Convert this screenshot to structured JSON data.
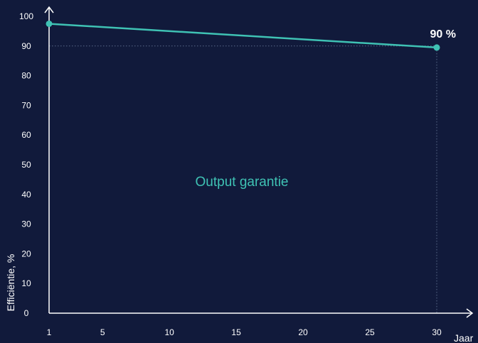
{
  "chart_data": {
    "type": "line",
    "x_ticks": [
      1,
      5,
      10,
      15,
      20,
      25,
      30
    ],
    "y_ticks": [
      0,
      10,
      20,
      30,
      40,
      50,
      60,
      70,
      80,
      90,
      100
    ],
    "xlim": [
      1,
      30
    ],
    "ylim": [
      0,
      100
    ],
    "xlabel": "Jaar",
    "ylabel": "Efficiëntie, %",
    "series": [
      {
        "x": [
          1,
          30
        ],
        "values": [
          97.5,
          89.5
        ]
      }
    ],
    "annotation": "90 %",
    "annotation_value": 90,
    "center_label": "Output garantie",
    "grid": false,
    "colors": {
      "background": "#111a3b",
      "line": "#3fc2b4",
      "axis": "#ffffff",
      "guide": "#5a6a8a",
      "label": "#3fc2b4"
    }
  }
}
